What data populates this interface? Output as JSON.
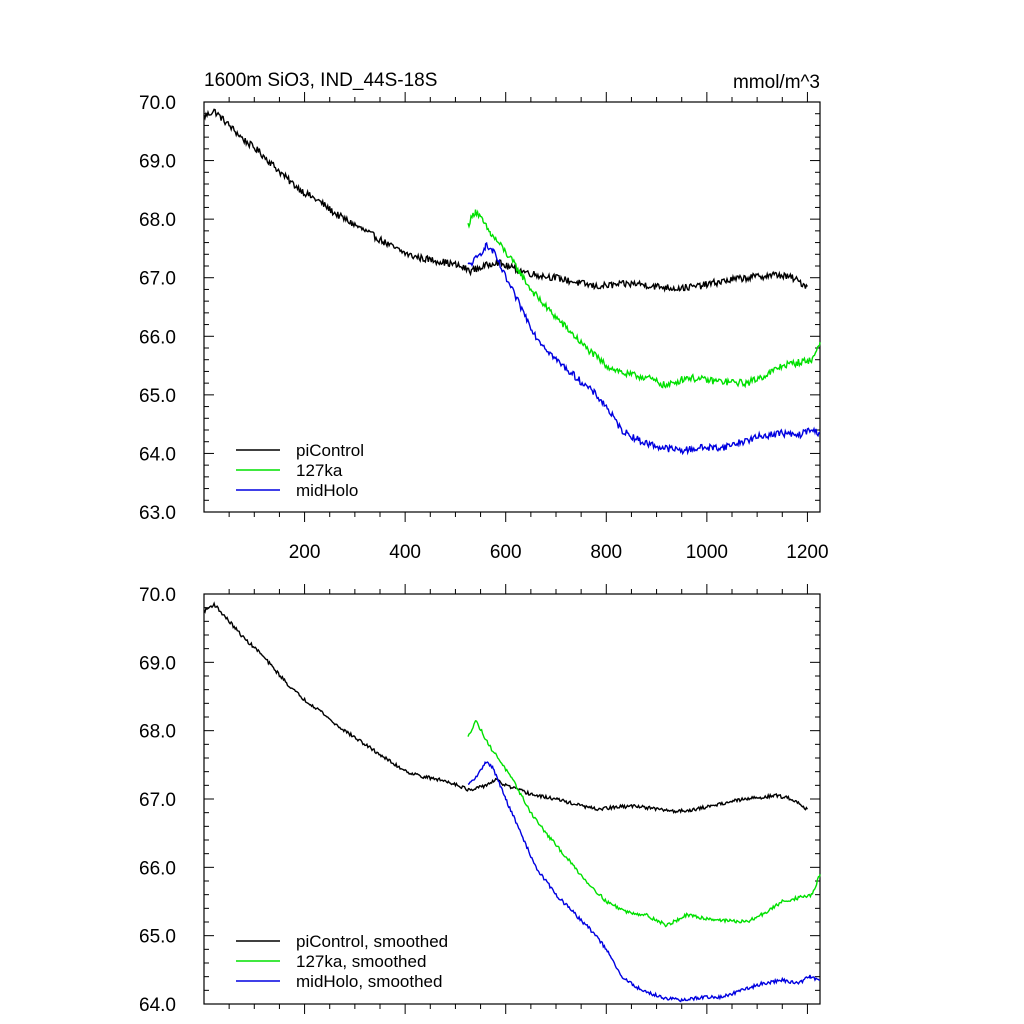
{
  "chart_data": [
    {
      "type": "line",
      "title": "1600m SiO3, IND_44S-18S",
      "units": "mmol/m^3",
      "xlabel": "",
      "ylabel": "",
      "xlim": [
        0,
        1225
      ],
      "ylim": [
        63.0,
        70.0
      ],
      "x_ticks": [
        200,
        400,
        600,
        800,
        1000,
        1200
      ],
      "x_tick_labels": [
        "200",
        "400",
        "600",
        "800",
        "1000",
        "1200"
      ],
      "y_ticks": [
        63,
        64,
        65,
        66,
        67,
        68,
        69,
        70
      ],
      "y_tick_labels": [
        "63.0",
        "64.0",
        "65.0",
        "66.0",
        "67.0",
        "68.0",
        "69.0",
        "70.0"
      ],
      "grid": false,
      "legend_position": "bottom-left",
      "series": [
        {
          "name": "piControl",
          "color": "#000000",
          "noise": 0.06,
          "x": [
            0,
            20,
            50,
            80,
            110,
            140,
            170,
            200,
            230,
            260,
            290,
            320,
            350,
            380,
            410,
            440,
            470,
            500,
            530,
            560,
            580,
            600,
            630,
            660,
            700,
            740,
            780,
            820,
            860,
            900,
            940,
            980,
            1020,
            1060,
            1100,
            1140,
            1170,
            1200
          ],
          "y": [
            69.75,
            69.85,
            69.6,
            69.35,
            69.15,
            68.9,
            68.65,
            68.45,
            68.3,
            68.1,
            67.95,
            67.8,
            67.65,
            67.5,
            67.38,
            67.32,
            67.28,
            67.22,
            67.12,
            67.2,
            67.28,
            67.2,
            67.12,
            67.05,
            67.0,
            66.92,
            66.85,
            66.88,
            66.9,
            66.85,
            66.82,
            66.85,
            66.92,
            66.98,
            67.02,
            67.05,
            67.0,
            66.85
          ]
        },
        {
          "name": "127ka",
          "color": "#00e000",
          "noise": 0.06,
          "x": [
            525,
            540,
            555,
            570,
            590,
            620,
            650,
            680,
            720,
            760,
            800,
            840,
            880,
            920,
            960,
            1000,
            1040,
            1080,
            1120,
            1150,
            1180,
            1210,
            1225
          ],
          "y": [
            67.9,
            68.15,
            67.95,
            67.75,
            67.55,
            67.2,
            66.8,
            66.5,
            66.15,
            65.8,
            65.5,
            65.35,
            65.3,
            65.15,
            65.3,
            65.25,
            65.22,
            65.2,
            65.35,
            65.5,
            65.55,
            65.6,
            65.9
          ]
        },
        {
          "name": "midHolo",
          "color": "#0000e0",
          "noise": 0.06,
          "x": [
            525,
            545,
            560,
            575,
            600,
            630,
            660,
            700,
            740,
            780,
            800,
            830,
            870,
            910,
            950,
            990,
            1030,
            1070,
            1110,
            1150,
            1180,
            1205,
            1225
          ],
          "y": [
            67.2,
            67.35,
            67.55,
            67.45,
            67.0,
            66.5,
            66.0,
            65.6,
            65.3,
            65.0,
            64.8,
            64.4,
            64.2,
            64.1,
            64.05,
            64.1,
            64.1,
            64.2,
            64.3,
            64.35,
            64.3,
            64.4,
            64.35
          ]
        }
      ]
    },
    {
      "type": "line",
      "title": "",
      "xlabel": "",
      "ylabel": "",
      "xlim": [
        0,
        1225
      ],
      "ylim": [
        64.0,
        70.0
      ],
      "x_ticks": [
        200,
        400,
        600,
        800,
        1000,
        1200
      ],
      "x_tick_labels": [],
      "y_ticks": [
        64,
        65,
        66,
        67,
        68,
        69,
        70
      ],
      "y_tick_labels": [
        "64.0",
        "65.0",
        "66.0",
        "67.0",
        "68.0",
        "69.0",
        "70.0"
      ],
      "grid": false,
      "legend_position": "bottom-left",
      "series": [
        {
          "name": "piControl, smoothed",
          "color": "#000000",
          "noise": 0.025,
          "x": [
            0,
            20,
            50,
            80,
            110,
            140,
            170,
            200,
            230,
            260,
            290,
            320,
            350,
            380,
            410,
            440,
            470,
            500,
            530,
            560,
            580,
            600,
            630,
            660,
            700,
            740,
            780,
            820,
            860,
            900,
            940,
            980,
            1020,
            1060,
            1100,
            1140,
            1170,
            1200
          ],
          "y": [
            69.75,
            69.85,
            69.6,
            69.35,
            69.15,
            68.9,
            68.65,
            68.45,
            68.3,
            68.1,
            67.95,
            67.8,
            67.65,
            67.5,
            67.38,
            67.32,
            67.28,
            67.22,
            67.12,
            67.2,
            67.28,
            67.2,
            67.12,
            67.05,
            67.0,
            66.92,
            66.85,
            66.88,
            66.9,
            66.85,
            66.82,
            66.85,
            66.92,
            66.98,
            67.02,
            67.05,
            67.0,
            66.85
          ]
        },
        {
          "name": "127ka, smoothed",
          "color": "#00e000",
          "noise": 0.025,
          "x": [
            525,
            540,
            555,
            570,
            590,
            620,
            650,
            680,
            720,
            760,
            800,
            840,
            880,
            920,
            960,
            1000,
            1040,
            1080,
            1120,
            1150,
            1180,
            1210,
            1225
          ],
          "y": [
            67.9,
            68.15,
            67.95,
            67.75,
            67.55,
            67.2,
            66.8,
            66.5,
            66.15,
            65.8,
            65.5,
            65.35,
            65.3,
            65.15,
            65.3,
            65.25,
            65.22,
            65.2,
            65.35,
            65.5,
            65.55,
            65.6,
            65.9
          ]
        },
        {
          "name": "midHolo, smoothed",
          "color": "#0000e0",
          "noise": 0.025,
          "x": [
            525,
            545,
            560,
            575,
            600,
            630,
            660,
            700,
            740,
            780,
            800,
            830,
            870,
            910,
            950,
            990,
            1030,
            1070,
            1110,
            1150,
            1180,
            1205,
            1225
          ],
          "y": [
            67.2,
            67.35,
            67.55,
            67.45,
            67.0,
            66.5,
            66.0,
            65.6,
            65.3,
            65.0,
            64.8,
            64.4,
            64.2,
            64.1,
            64.05,
            64.1,
            64.1,
            64.2,
            64.3,
            64.35,
            64.3,
            64.4,
            64.35
          ]
        }
      ]
    }
  ]
}
